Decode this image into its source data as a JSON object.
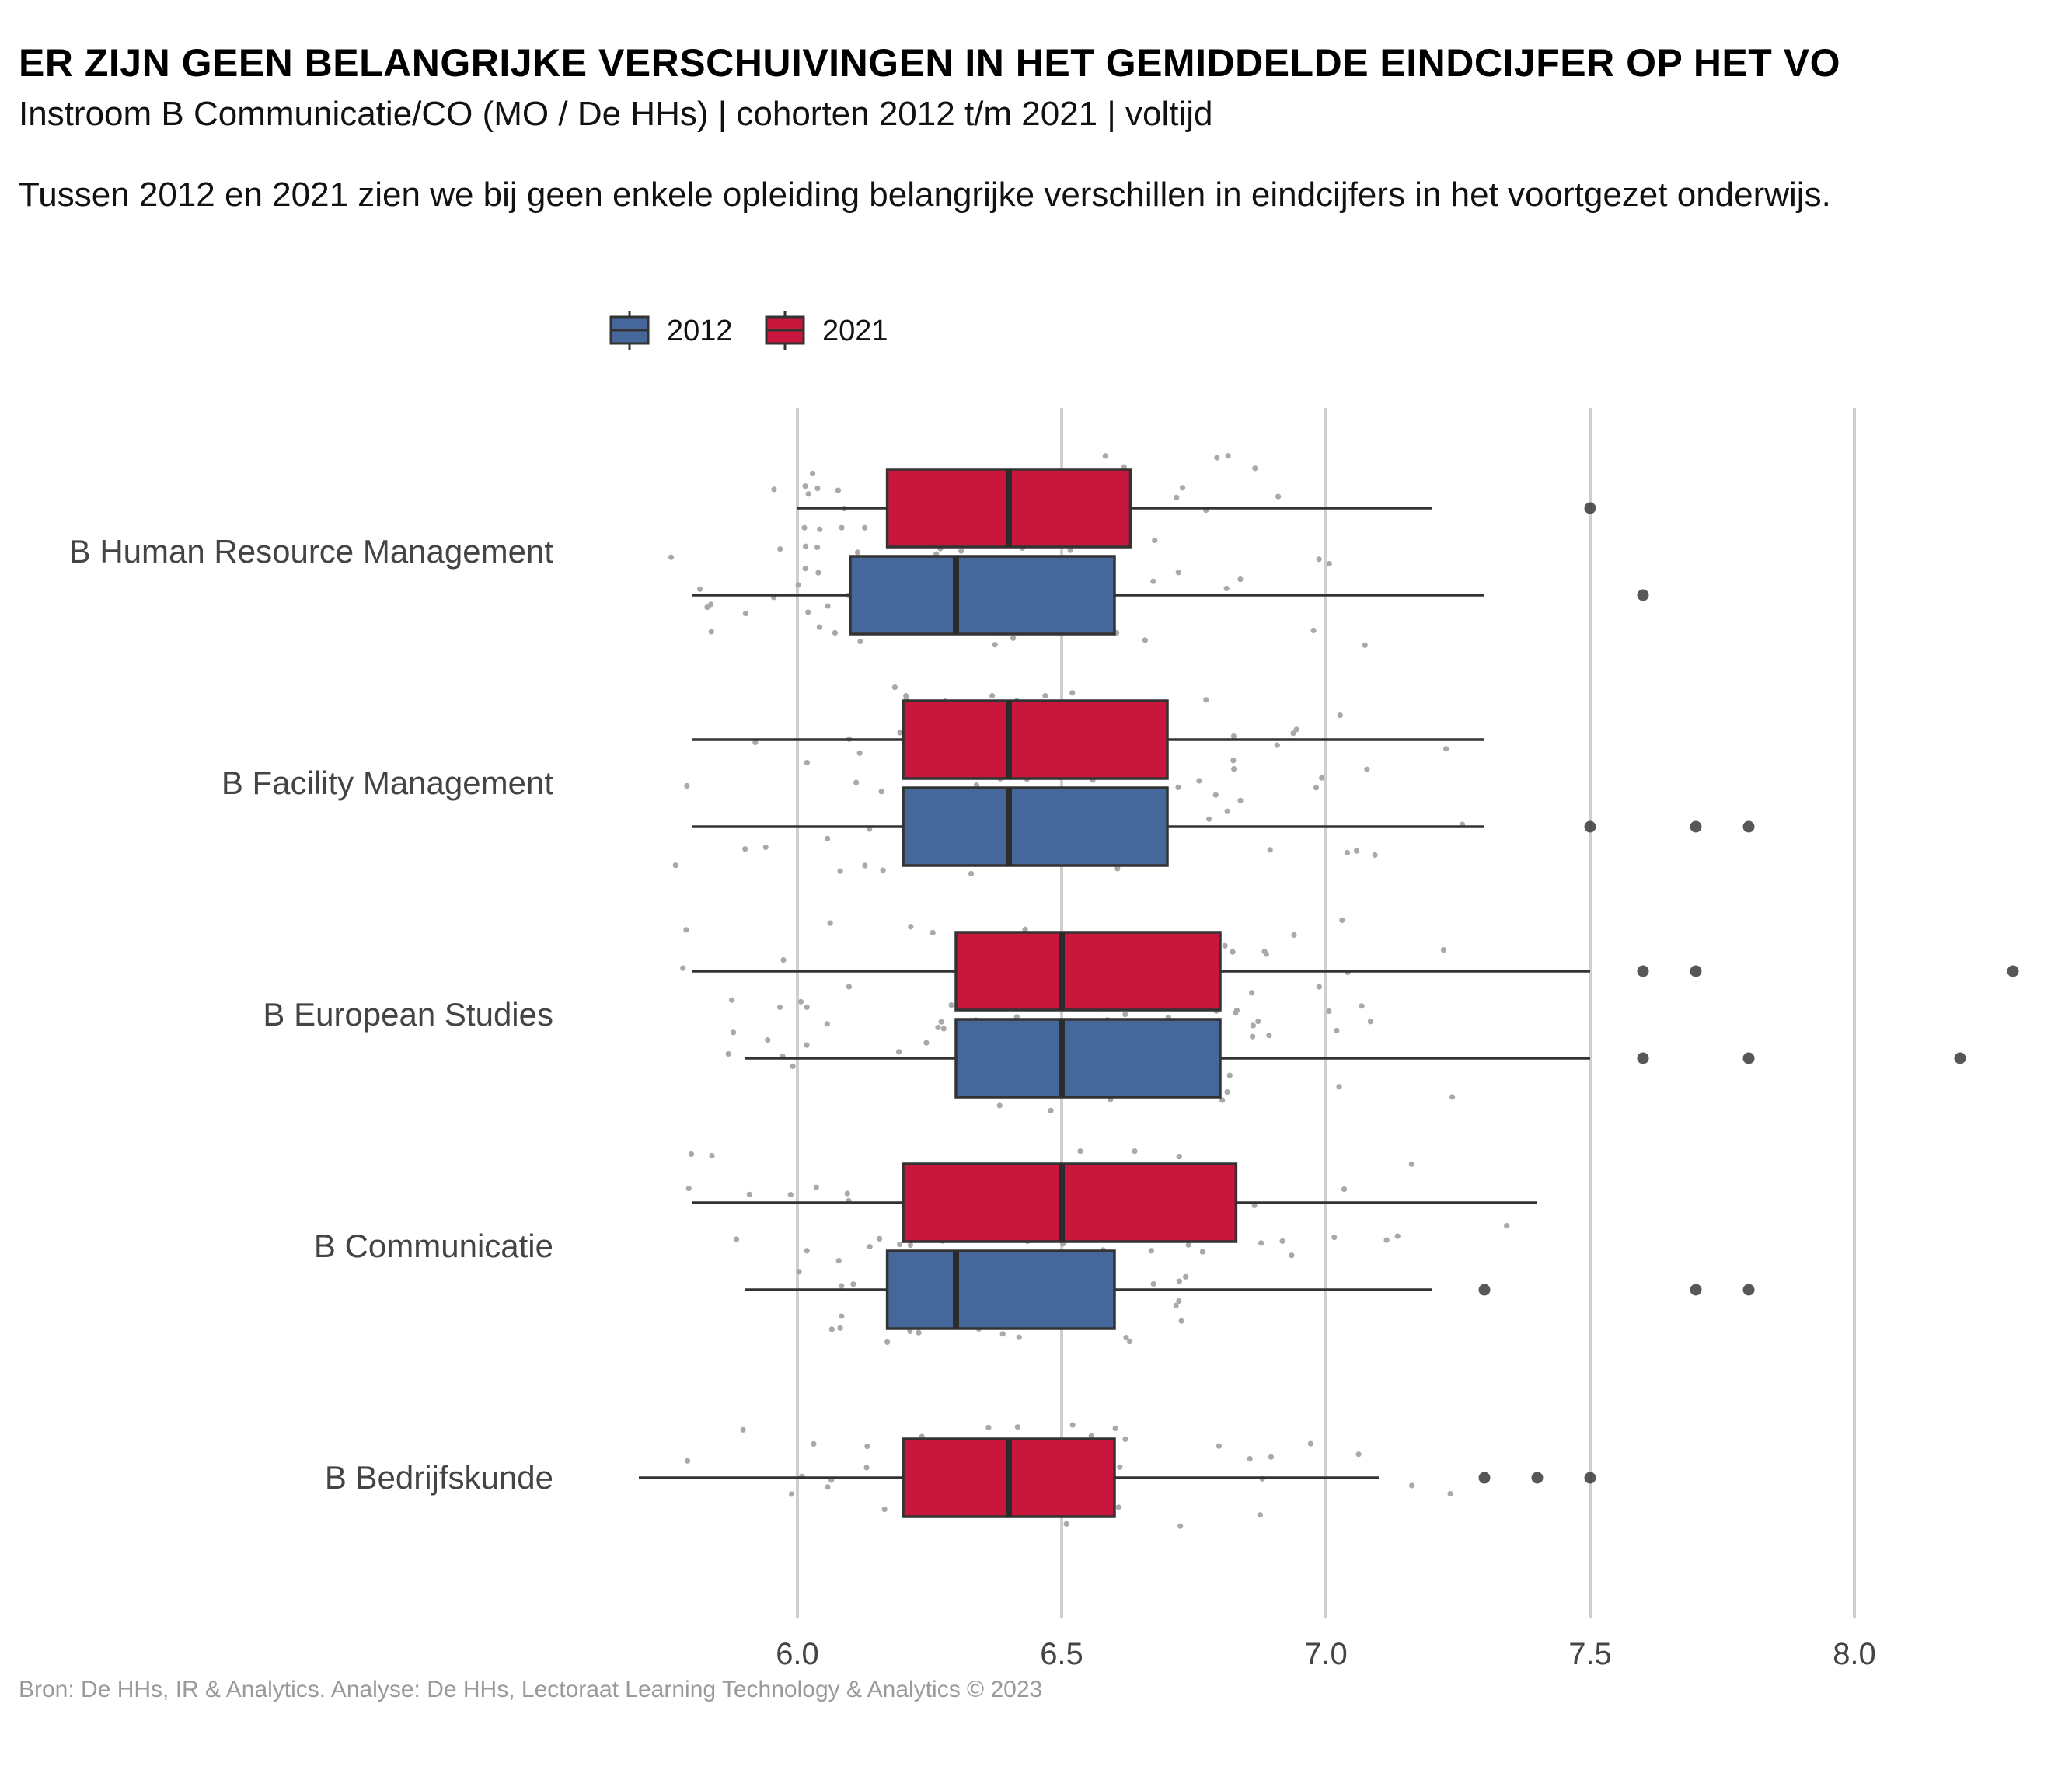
{
  "title": "ER ZIJN GEEN BELANGRIJKE VERSCHUIVINGEN IN HET GEMIDDELDE EINDCIJFER OP HET VO",
  "subtitle": "Instroom B Communicatie/CO (MO / De HHs) | cohorten 2012 t/m 2021 | voltijd",
  "description": "Tussen 2012 en 2021 zien we bij geen enkele opleiding belangrijke verschillen in eindcijfers in het voortgezet onderwijs.",
  "caption": "Bron: De HHs, IR & Analytics. Analyse: De HHs, Lectoraat Learning Technology & Analytics © 2023",
  "chart_data": {
    "type": "boxplot",
    "orientation": "horizontal",
    "x_range": [
      5.7,
      8.3
    ],
    "x_ticks": [
      6.0,
      6.5,
      7.0,
      7.5,
      8.0
    ],
    "x_tick_labels": [
      "6.0",
      "6.5",
      "7.0",
      "7.5",
      "8.0"
    ],
    "grid": "vertical major gridlines",
    "legend": {
      "position": "top",
      "entries": [
        {
          "name": "2012",
          "color": "#46679A"
        },
        {
          "name": "2021",
          "color": "#C8163C"
        }
      ]
    },
    "categories": [
      "B Human Resource Management",
      "B Facility Management",
      "B European Studies",
      "B Communicatie",
      "B Bedrijfskunde"
    ],
    "series": [
      {
        "name": "2021",
        "color": "#C8163C",
        "boxes": [
          {
            "category": "B Human Resource Management",
            "whisker_low": 6.0,
            "q1": 6.17,
            "median": 6.4,
            "q3": 6.63,
            "whisker_high": 7.2,
            "outliers": [
              7.5
            ]
          },
          {
            "category": "B Facility Management",
            "whisker_low": 5.8,
            "q1": 6.2,
            "median": 6.4,
            "q3": 6.7,
            "whisker_high": 7.3,
            "outliers": []
          },
          {
            "category": "B European Studies",
            "whisker_low": 5.8,
            "q1": 6.3,
            "median": 6.5,
            "q3": 6.8,
            "whisker_high": 7.5,
            "outliers": [
              7.6,
              7.7,
              8.3
            ]
          },
          {
            "category": "B Communicatie",
            "whisker_low": 5.8,
            "q1": 6.2,
            "median": 6.5,
            "q3": 6.83,
            "whisker_high": 7.4,
            "outliers": []
          },
          {
            "category": "B Bedrijfskunde",
            "whisker_low": 5.7,
            "q1": 6.2,
            "median": 6.4,
            "q3": 6.6,
            "whisker_high": 7.1,
            "outliers": [
              7.3,
              7.4,
              7.5
            ]
          }
        ]
      },
      {
        "name": "2012",
        "color": "#46679A",
        "boxes": [
          {
            "category": "B Human Resource Management",
            "whisker_low": 5.8,
            "q1": 6.1,
            "median": 6.3,
            "q3": 6.6,
            "whisker_high": 7.3,
            "outliers": [
              7.6
            ]
          },
          {
            "category": "B Facility Management",
            "whisker_low": 5.8,
            "q1": 6.2,
            "median": 6.4,
            "q3": 6.7,
            "whisker_high": 7.3,
            "outliers": [
              7.5,
              7.7,
              7.8
            ]
          },
          {
            "category": "B European Studies",
            "whisker_low": 5.9,
            "q1": 6.3,
            "median": 6.5,
            "q3": 6.8,
            "whisker_high": 7.5,
            "outliers": [
              7.6,
              7.8,
              8.2
            ]
          },
          {
            "category": "B Communicatie",
            "whisker_low": 5.9,
            "q1": 6.17,
            "median": 6.3,
            "q3": 6.6,
            "whisker_high": 7.2,
            "outliers": [
              7.3,
              7.7,
              7.8
            ]
          }
        ]
      }
    ],
    "jitter_points": "grey jittered individual observations behind each box"
  }
}
